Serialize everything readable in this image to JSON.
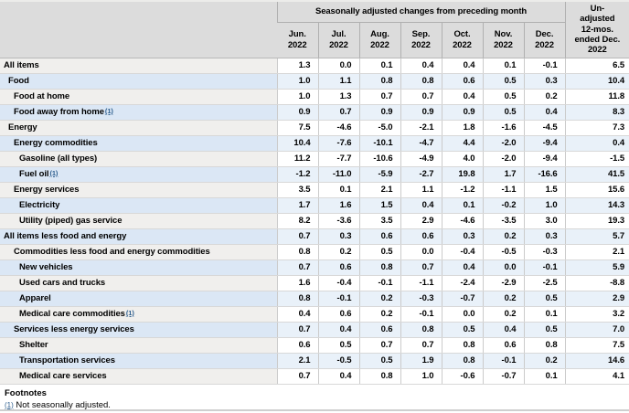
{
  "header": {
    "group_label": "Seasonally adjusted changes from preceding month",
    "unadjusted_label": "Un-adjusted 12-mos. ended Dec. 2022",
    "months": [
      {
        "label": "Jun.",
        "year": "2022"
      },
      {
        "label": "Jul.",
        "year": "2022"
      },
      {
        "label": "Aug.",
        "year": "2022"
      },
      {
        "label": "Sep.",
        "year": "2022"
      },
      {
        "label": "Oct.",
        "year": "2022"
      },
      {
        "label": "Nov.",
        "year": "2022"
      },
      {
        "label": "Dec.",
        "year": "2022"
      }
    ]
  },
  "table": {
    "rows": [
      {
        "label": "All items",
        "indent": 0,
        "footnote": false,
        "values": [
          "1.3",
          "0.0",
          "0.1",
          "0.4",
          "0.4",
          "0.1",
          "-0.1",
          "6.5"
        ]
      },
      {
        "label": "Food",
        "indent": 1,
        "footnote": false,
        "values": [
          "1.0",
          "1.1",
          "0.8",
          "0.8",
          "0.6",
          "0.5",
          "0.3",
          "10.4"
        ]
      },
      {
        "label": "Food at home",
        "indent": 2,
        "footnote": false,
        "values": [
          "1.0",
          "1.3",
          "0.7",
          "0.7",
          "0.4",
          "0.5",
          "0.2",
          "11.8"
        ]
      },
      {
        "label": "Food away from home",
        "indent": 2,
        "footnote": true,
        "values": [
          "0.9",
          "0.7",
          "0.9",
          "0.9",
          "0.9",
          "0.5",
          "0.4",
          "8.3"
        ]
      },
      {
        "label": "Energy",
        "indent": 1,
        "footnote": false,
        "values": [
          "7.5",
          "-4.6",
          "-5.0",
          "-2.1",
          "1.8",
          "-1.6",
          "-4.5",
          "7.3"
        ]
      },
      {
        "label": "Energy commodities",
        "indent": 2,
        "footnote": false,
        "values": [
          "10.4",
          "-7.6",
          "-10.1",
          "-4.7",
          "4.4",
          "-2.0",
          "-9.4",
          "0.4"
        ]
      },
      {
        "label": "Gasoline (all types)",
        "indent": 3,
        "footnote": false,
        "values": [
          "11.2",
          "-7.7",
          "-10.6",
          "-4.9",
          "4.0",
          "-2.0",
          "-9.4",
          "-1.5"
        ]
      },
      {
        "label": "Fuel oil",
        "indent": 3,
        "footnote": true,
        "values": [
          "-1.2",
          "-11.0",
          "-5.9",
          "-2.7",
          "19.8",
          "1.7",
          "-16.6",
          "41.5"
        ]
      },
      {
        "label": "Energy services",
        "indent": 2,
        "footnote": false,
        "values": [
          "3.5",
          "0.1",
          "2.1",
          "1.1",
          "-1.2",
          "-1.1",
          "1.5",
          "15.6"
        ]
      },
      {
        "label": "Electricity",
        "indent": 3,
        "footnote": false,
        "values": [
          "1.7",
          "1.6",
          "1.5",
          "0.4",
          "0.1",
          "-0.2",
          "1.0",
          "14.3"
        ]
      },
      {
        "label": "Utility (piped) gas service",
        "indent": 3,
        "footnote": false,
        "values": [
          "8.2",
          "-3.6",
          "3.5",
          "2.9",
          "-4.6",
          "-3.5",
          "3.0",
          "19.3"
        ]
      },
      {
        "label": "All items less food and energy",
        "indent": 0,
        "footnote": false,
        "values": [
          "0.7",
          "0.3",
          "0.6",
          "0.6",
          "0.3",
          "0.2",
          "0.3",
          "5.7"
        ]
      },
      {
        "label": "Commodities less food and energy commodities",
        "indent": 2,
        "footnote": false,
        "values": [
          "0.8",
          "0.2",
          "0.5",
          "0.0",
          "-0.4",
          "-0.5",
          "-0.3",
          "2.1"
        ]
      },
      {
        "label": "New vehicles",
        "indent": 3,
        "footnote": false,
        "values": [
          "0.7",
          "0.6",
          "0.8",
          "0.7",
          "0.4",
          "0.0",
          "-0.1",
          "5.9"
        ]
      },
      {
        "label": "Used cars and trucks",
        "indent": 3,
        "footnote": false,
        "values": [
          "1.6",
          "-0.4",
          "-0.1",
          "-1.1",
          "-2.4",
          "-2.9",
          "-2.5",
          "-8.8"
        ]
      },
      {
        "label": "Apparel",
        "indent": 3,
        "footnote": false,
        "values": [
          "0.8",
          "-0.1",
          "0.2",
          "-0.3",
          "-0.7",
          "0.2",
          "0.5",
          "2.9"
        ]
      },
      {
        "label": "Medical care commodities",
        "indent": 3,
        "footnote": true,
        "values": [
          "0.4",
          "0.6",
          "0.2",
          "-0.1",
          "0.0",
          "0.2",
          "0.1",
          "3.2"
        ]
      },
      {
        "label": "Services less energy services",
        "indent": 2,
        "footnote": false,
        "values": [
          "0.7",
          "0.4",
          "0.6",
          "0.8",
          "0.5",
          "0.4",
          "0.5",
          "7.0"
        ]
      },
      {
        "label": "Shelter",
        "indent": 3,
        "footnote": false,
        "values": [
          "0.6",
          "0.5",
          "0.7",
          "0.7",
          "0.8",
          "0.6",
          "0.8",
          "7.5"
        ]
      },
      {
        "label": "Transportation services",
        "indent": 3,
        "footnote": false,
        "values": [
          "2.1",
          "-0.5",
          "0.5",
          "1.9",
          "0.8",
          "-0.1",
          "0.2",
          "14.6"
        ]
      },
      {
        "label": "Medical care services",
        "indent": 3,
        "footnote": false,
        "values": [
          "0.7",
          "0.4",
          "0.8",
          "1.0",
          "-0.6",
          "-0.7",
          "0.1",
          "4.1"
        ]
      }
    ]
  },
  "footnotes": {
    "title": "Footnotes",
    "ref": "(1)",
    "text": "Not seasonally adjusted."
  }
}
